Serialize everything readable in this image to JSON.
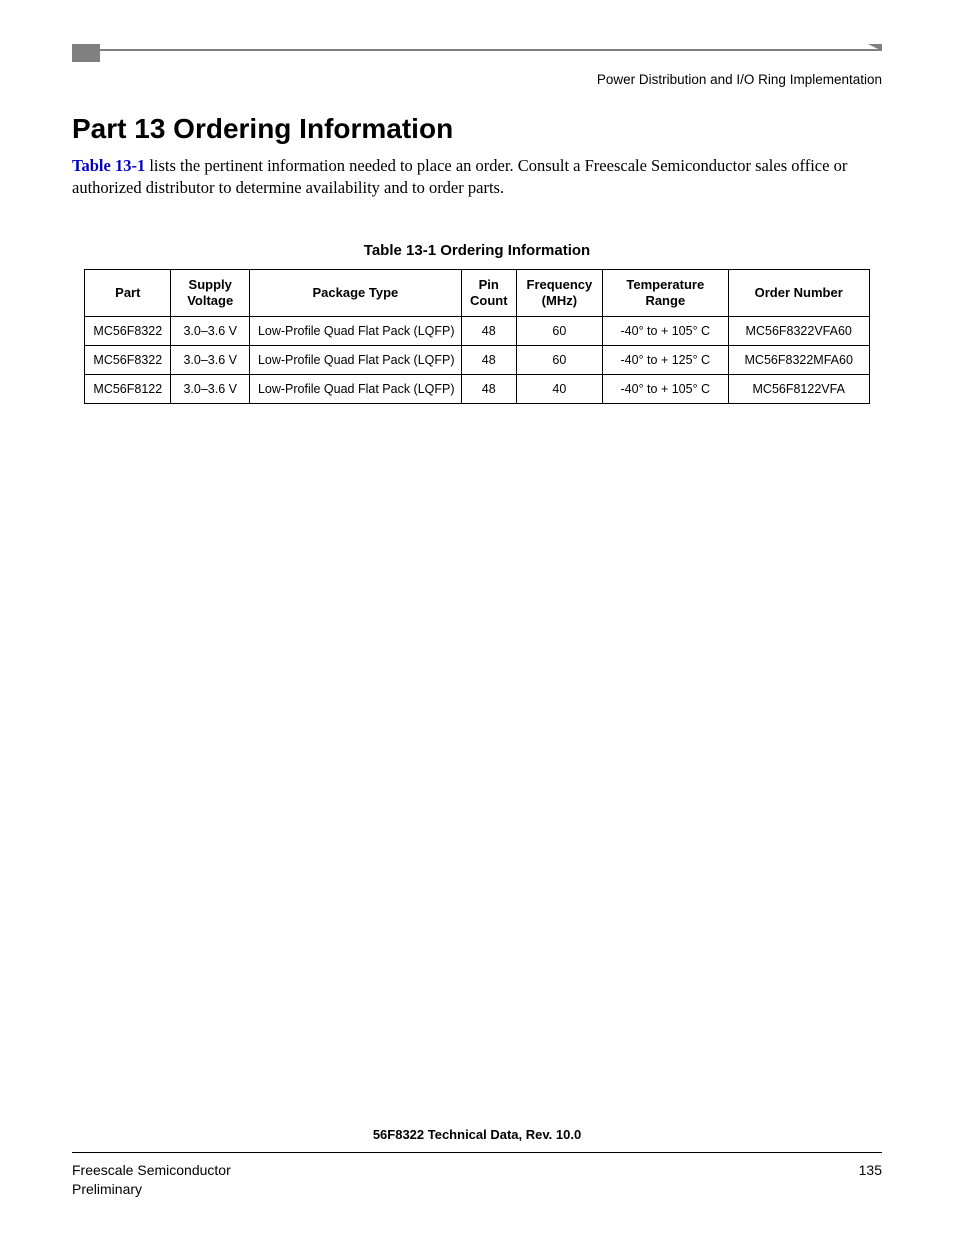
{
  "header": {
    "section_label": "Power Distribution and I/O Ring Implementation"
  },
  "main": {
    "heading": "Part 13  Ordering Information",
    "intro_link": "Table 13-1",
    "intro_rest": " lists the pertinent information needed to place an order. Consult a Freescale Semiconductor sales office or authorized distributor to determine availability and to order parts."
  },
  "table": {
    "title": "Table 13-1  Ordering Information",
    "columns": [
      "Part",
      "Supply Voltage",
      "Package Type",
      "Pin Count",
      "Frequency (MHz)",
      "Temperature Range",
      "Order Number"
    ],
    "column_html": {
      "supply": "Supply<br>Voltage",
      "pin": "Pin<br>Count",
      "freq": "Frequency<br>(MHz)",
      "temp": "Temperature<br>Range"
    },
    "rows": [
      [
        "MC56F8322",
        "3.0–3.6 V",
        "Low-Profile Quad Flat Pack (LQFP)",
        "48",
        "60",
        "-40° to + 105° C",
        "MC56F8322VFA60"
      ],
      [
        "MC56F8322",
        "3.0–3.6 V",
        "Low-Profile Quad Flat Pack (LQFP)",
        "48",
        "60",
        "-40° to + 125° C",
        "MC56F8322MFA60"
      ],
      [
        "MC56F8122",
        "3.0–3.6 V",
        "Low-Profile Quad Flat Pack (LQFP)",
        "48",
        "40",
        "-40° to + 105° C",
        "MC56F8122VFA"
      ]
    ],
    "col_widths": [
      "11%",
      "10%",
      "27%",
      "7%",
      "11%",
      "16%",
      "18%"
    ]
  },
  "footer": {
    "doc_title": "56F8322 Technical Data, Rev. 10.0",
    "company": "Freescale Semiconductor",
    "status": "Preliminary",
    "page_number": "135"
  },
  "colors": {
    "link_color": "#0000cc",
    "header_gray": "#808080",
    "text_color": "#000000",
    "background": "#ffffff"
  }
}
